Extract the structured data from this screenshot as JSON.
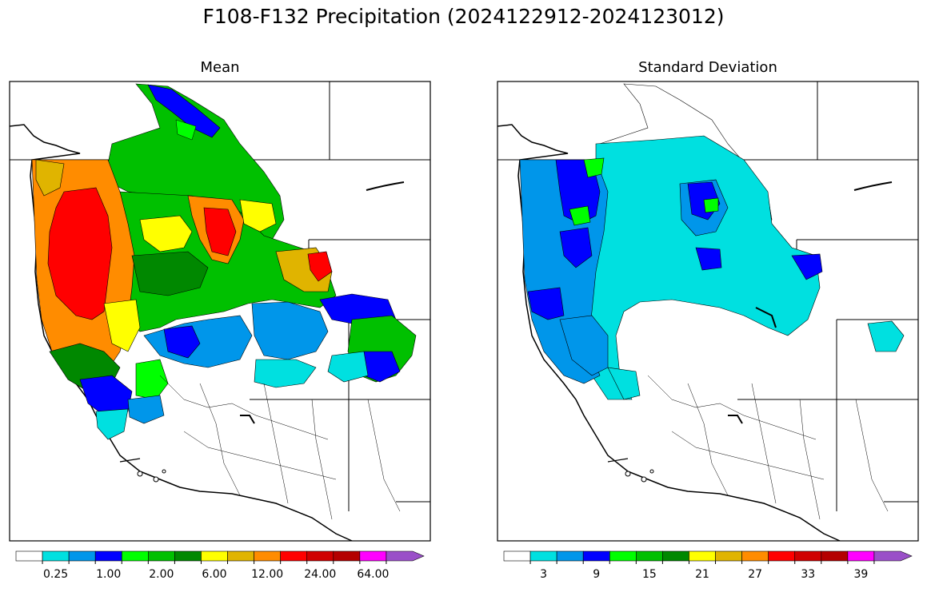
{
  "figure": {
    "title": "F108-F132 Precipitation (2024122912-2024123012)"
  },
  "panels": [
    {
      "title": "Mean",
      "colorbar": {
        "colors": [
          "#ffffff",
          "#00e0e0",
          "#0096ea",
          "#0000ff",
          "#00ff00",
          "#00c000",
          "#008800",
          "#ffff00",
          "#e0b400",
          "#ff8c00",
          "#ff0000",
          "#d00000",
          "#b40000",
          "#ff00ff",
          "#9a50c8"
        ],
        "tick_labels": [
          "0.25",
          "1.00",
          "2.00",
          "6.00",
          "12.00",
          "24.00",
          "64.00"
        ],
        "tick_boundary_index": [
          1,
          3,
          5,
          7,
          9,
          11,
          13
        ],
        "extend": "max"
      }
    },
    {
      "title": "Standard Deviation",
      "colorbar": {
        "colors": [
          "#ffffff",
          "#00e0e0",
          "#0096ea",
          "#0000ff",
          "#00ff00",
          "#00c000",
          "#008800",
          "#ffff00",
          "#e0b400",
          "#ff8c00",
          "#ff0000",
          "#d00000",
          "#b40000",
          "#ff00ff",
          "#9a50c8"
        ],
        "tick_labels": [
          "3",
          "9",
          "15",
          "21",
          "27",
          "33",
          "39"
        ],
        "tick_boundary_index": [
          1,
          3,
          5,
          7,
          9,
          11,
          13
        ],
        "extend": "max"
      }
    }
  ]
}
